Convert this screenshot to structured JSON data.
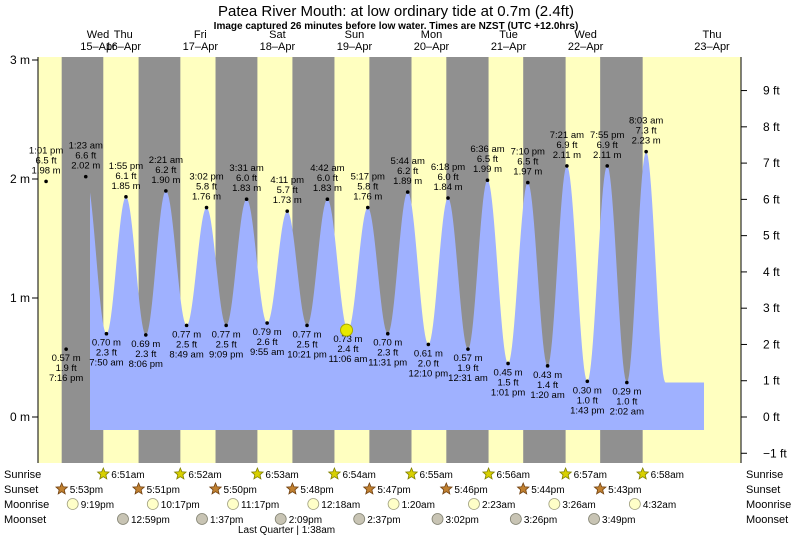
{
  "chart_data": {
    "type": "area",
    "title": "Patea River Mouth: at low  ordinary tide at 0.7m (2.4ft)",
    "subtitle": "Image captured 26 minutes before low water. Times are NZST (UTC +12.0hrs)",
    "ylim_m": [
      -0.3,
      3.0
    ],
    "y_ticks_left": [
      {
        "v": 3,
        "label": "3 m"
      },
      {
        "v": 2,
        "label": "2 m"
      },
      {
        "v": 1,
        "label": "1 m"
      },
      {
        "v": 0,
        "label": "0 m"
      }
    ],
    "y_ticks_right_ft": [
      9,
      8,
      7,
      6,
      5,
      4,
      3,
      2,
      1,
      0,
      -1
    ],
    "y_ticks_right_labels": [
      "9 ft",
      "8 ft",
      "7 ft",
      "6 ft",
      "5 ft",
      "4 ft",
      "3 ft",
      "2 ft",
      "1 ft",
      "0 ft",
      "−1 ft"
    ],
    "days": [
      {
        "dow": "Wed",
        "date": "15–Apr"
      },
      {
        "dow": "Thu",
        "date": "16–Apr"
      },
      {
        "dow": "Fri",
        "date": "17–Apr"
      },
      {
        "dow": "Sat",
        "date": "18–Apr"
      },
      {
        "dow": "Sun",
        "date": "19–Apr"
      },
      {
        "dow": "Mon",
        "date": "20–Apr"
      },
      {
        "dow": "Tue",
        "date": "21–Apr"
      },
      {
        "dow": "Wed",
        "date": "22–Apr"
      },
      {
        "dow": "Thu",
        "date": "23–Apr"
      }
    ],
    "tides": [
      {
        "type": "high",
        "day": 0,
        "time": "1:01 pm",
        "ft": "6.5 ft",
        "m": 1.98,
        "m_label": "1.98 m"
      },
      {
        "type": "low",
        "day": 0,
        "time": "7:16 pm",
        "ft": "1.9 ft",
        "m": 0.57,
        "m_label": "0.57 m"
      },
      {
        "type": "high",
        "day": 1,
        "time": "1:23 am",
        "ft": "6.6 ft",
        "m": 2.02,
        "m_label": "2.02 m"
      },
      {
        "type": "low",
        "day": 1,
        "time": "7:50 am",
        "ft": "2.3 ft",
        "m": 0.7,
        "m_label": "0.70 m"
      },
      {
        "type": "high",
        "day": 1,
        "time": "1:55 pm",
        "ft": "6.1 ft",
        "m": 1.85,
        "m_label": "1.85 m"
      },
      {
        "type": "low",
        "day": 1,
        "time": "8:06 pm",
        "ft": "2.3 ft",
        "m": 0.69,
        "m_label": "0.69 m"
      },
      {
        "type": "high",
        "day": 2,
        "time": "2:21 am",
        "ft": "6.2 ft",
        "m": 1.9,
        "m_label": "1.90 m"
      },
      {
        "type": "low",
        "day": 2,
        "time": "8:49 am",
        "ft": "2.5 ft",
        "m": 0.77,
        "m_label": "0.77 m"
      },
      {
        "type": "high",
        "day": 2,
        "time": "3:02 pm",
        "ft": "5.8 ft",
        "m": 1.76,
        "m_label": "1.76 m"
      },
      {
        "type": "low",
        "day": 2,
        "time": "9:09 pm",
        "ft": "2.5 ft",
        "m": 0.77,
        "m_label": "0.77 m"
      },
      {
        "type": "high",
        "day": 3,
        "time": "3:31 am",
        "ft": "6.0 ft",
        "m": 1.83,
        "m_label": "1.83 m"
      },
      {
        "type": "low",
        "day": 3,
        "time": "9:55 am",
        "ft": "2.6 ft",
        "m": 0.79,
        "m_label": "0.79 m"
      },
      {
        "type": "high",
        "day": 3,
        "time": "4:11 pm",
        "ft": "5.7 ft",
        "m": 1.73,
        "m_label": "1.73 m"
      },
      {
        "type": "low",
        "day": 3,
        "time": "10:21 pm",
        "ft": "2.5 ft",
        "m": 0.77,
        "m_label": "0.77 m"
      },
      {
        "type": "high",
        "day": 4,
        "time": "4:42 am",
        "ft": "6.0 ft",
        "m": 1.83,
        "m_label": "1.83 m"
      },
      {
        "type": "low",
        "day": 4,
        "time": "11:06 am",
        "ft": "2.4 ft",
        "m": 0.73,
        "m_label": "0.73 m"
      },
      {
        "type": "high",
        "day": 4,
        "time": "5:17 pm",
        "ft": "5.8 ft",
        "m": 1.76,
        "m_label": "1.76 m"
      },
      {
        "type": "low",
        "day": 4,
        "time": "11:31 pm",
        "ft": "2.3 ft",
        "m": 0.7,
        "m_label": "0.70 m"
      },
      {
        "type": "high",
        "day": 5,
        "time": "5:44 am",
        "ft": "6.2 ft",
        "m": 1.89,
        "m_label": "1.89 m"
      },
      {
        "type": "low",
        "day": 5,
        "time": "12:10 pm",
        "ft": "2.0 ft",
        "m": 0.61,
        "m_label": "0.61 m"
      },
      {
        "type": "high",
        "day": 5,
        "time": "6:18 pm",
        "ft": "6.0 ft",
        "m": 1.84,
        "m_label": "1.84 m"
      },
      {
        "type": "low",
        "day": 6,
        "time": "12:31 am",
        "ft": "1.9 ft",
        "m": 0.57,
        "m_label": "0.57 m"
      },
      {
        "type": "high",
        "day": 6,
        "time": "6:36 am",
        "ft": "6.5 ft",
        "m": 1.99,
        "m_label": "1.99 m"
      },
      {
        "type": "low",
        "day": 6,
        "time": "1:01 pm",
        "ft": "1.5 ft",
        "m": 0.45,
        "m_label": "0.45 m"
      },
      {
        "type": "high",
        "day": 6,
        "time": "7:10 pm",
        "ft": "6.5 ft",
        "m": 1.97,
        "m_label": "1.97 m"
      },
      {
        "type": "low",
        "day": 7,
        "time": "1:20 am",
        "ft": "1.4 ft",
        "m": 0.43,
        "m_label": "0.43 m"
      },
      {
        "type": "high",
        "day": 7,
        "time": "7:21 am",
        "ft": "6.9 ft",
        "m": 2.11,
        "m_label": "2.11 m"
      },
      {
        "type": "low",
        "day": 7,
        "time": "1:43 pm",
        "ft": "1.0 ft",
        "m": 0.3,
        "m_label": "0.30 m"
      },
      {
        "type": "high",
        "day": 7,
        "time": "7:55 pm",
        "ft": "6.9 ft",
        "m": 2.11,
        "m_label": "2.11 m"
      },
      {
        "type": "low",
        "day": 8,
        "time": "2:02 am",
        "ft": "1.0 ft",
        "m": 0.29,
        "m_label": "0.29 m"
      },
      {
        "type": "high",
        "day": 8,
        "time": "8:03 am",
        "ft": "7.3 ft",
        "m": 2.23,
        "m_label": "2.23 m"
      }
    ],
    "current_marker": {
      "time": "10:40 am",
      "day": 4,
      "m": 0.73
    },
    "sunrise": [
      {
        "day": 1,
        "time": "6:51am"
      },
      {
        "day": 2,
        "time": "6:52am"
      },
      {
        "day": 3,
        "time": "6:53am"
      },
      {
        "day": 4,
        "time": "6:54am"
      },
      {
        "day": 5,
        "time": "6:55am"
      },
      {
        "day": 6,
        "time": "6:56am"
      },
      {
        "day": 7,
        "time": "6:57am"
      },
      {
        "day": 8,
        "time": "6:58am"
      }
    ],
    "sunset": [
      {
        "day": 0,
        "time": "5:53pm"
      },
      {
        "day": 1,
        "time": "5:51pm"
      },
      {
        "day": 2,
        "time": "5:50pm"
      },
      {
        "day": 3,
        "time": "5:48pm"
      },
      {
        "day": 4,
        "time": "5:47pm"
      },
      {
        "day": 5,
        "time": "5:46pm"
      },
      {
        "day": 6,
        "time": "5:44pm"
      },
      {
        "day": 7,
        "time": "5:43pm"
      }
    ],
    "moonrise": [
      {
        "day": 0,
        "time": "9:19pm"
      },
      {
        "day": 1,
        "time": "10:17pm"
      },
      {
        "day": 2,
        "time": "11:17pm"
      },
      {
        "day": 4,
        "time": "12:18am"
      },
      {
        "day": 5,
        "time": "1:20am"
      },
      {
        "day": 6,
        "time": "2:23am"
      },
      {
        "day": 7,
        "time": "3:26am"
      },
      {
        "day": 8,
        "time": "4:32am"
      }
    ],
    "moonset": [
      {
        "day": 1,
        "time": "12:59pm"
      },
      {
        "day": 2,
        "time": "1:37pm"
      },
      {
        "day": 3,
        "time": "2:09pm"
      },
      {
        "day": 4,
        "time": "2:37pm"
      },
      {
        "day": 5,
        "time": "3:02pm"
      },
      {
        "day": 6,
        "time": "3:26pm"
      },
      {
        "day": 7,
        "time": "3:49pm"
      }
    ],
    "moon_phase_note": "Last Quarter | 1:38am",
    "row_labels": {
      "sunrise": "Sunrise",
      "sunset": "Sunset",
      "moonrise": "Moonrise",
      "moonset": "Moonset"
    },
    "colors": {
      "day": "#ffffc0",
      "night": "#909090",
      "water": "#9fb1ff",
      "day_header": "#ff0000",
      "sun": "#d8d000",
      "sunset_star": "#c08030",
      "moon_rise": "#ffffc8",
      "moon_set": "#c8c4b4",
      "current": "#e8e800"
    }
  }
}
